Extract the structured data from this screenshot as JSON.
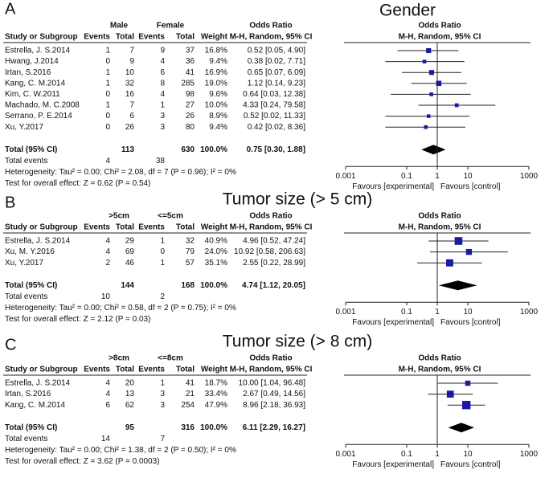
{
  "chart_data": [
    {
      "type": "forest",
      "panel": "A",
      "title": "Gender",
      "group_labels": [
        "Male",
        "Female"
      ],
      "headers": {
        "study": "Study or Subgroup",
        "events": "Events",
        "total": "Total",
        "weight": "Weight",
        "effect": "Odds Ratio",
        "method": "M-H, Random, 95% CI"
      },
      "categories": [
        "Estrella, J. S.2014",
        "Hwang, J.2014",
        "Irtan, S.2016",
        "Kang, C. M.2014",
        "Kim, C. W.2011",
        "Machado, M. C.2008",
        "Serrano, P. E.2014",
        "Xu, Y.2017"
      ],
      "events1": [
        1,
        0,
        1,
        1,
        0,
        1,
        0,
        0
      ],
      "total1": [
        7,
        9,
        10,
        32,
        16,
        7,
        6,
        26
      ],
      "events2": [
        9,
        4,
        6,
        8,
        4,
        1,
        3,
        3
      ],
      "total2": [
        37,
        36,
        41,
        285,
        98,
        27,
        26,
        80
      ],
      "weights": [
        16.8,
        9.4,
        16.9,
        19.0,
        9.6,
        10.0,
        8.9,
        9.4
      ],
      "weight_labels": [
        "16.8%",
        "9.4%",
        "16.9%",
        "19.0%",
        "9.6%",
        "10.0%",
        "8.9%",
        "9.4%"
      ],
      "values": [
        0.52,
        0.38,
        0.65,
        1.12,
        0.64,
        4.33,
        0.52,
        0.42
      ],
      "ci_low": [
        0.05,
        0.02,
        0.07,
        0.14,
        0.03,
        0.24,
        0.02,
        0.02
      ],
      "ci_high": [
        4.9,
        7.71,
        6.09,
        9.23,
        12.38,
        79.58,
        11.33,
        8.36
      ],
      "value_labels": [
        "0.52 [0.05, 4.90]",
        "0.38 [0.02, 7.71]",
        "0.65 [0.07, 6.09]",
        "1.12 [0.14, 9.23]",
        "0.64 [0.03, 12.38]",
        "4.33 [0.24, 79.58]",
        "0.52 [0.02, 11.33]",
        "0.42 [0.02, 8.36]"
      ],
      "total": {
        "label": "Total (95% CI)",
        "total1": 113,
        "total2": 630,
        "weight_label": "100.0%",
        "value": 0.75,
        "ci_low": 0.3,
        "ci_high": 1.88,
        "value_label": "0.75 [0.30, 1.88]"
      },
      "total_events": {
        "label": "Total events",
        "events1": 4,
        "events2": 38
      },
      "heterogeneity": "Heterogeneity: Tau² = 0.00; Chi² = 2.08, df = 7 (P = 0.96); I² = 0%",
      "overall_effect": "Test for overall effect: Z = 0.62 (P = 0.54)",
      "xlim": [
        0.001,
        1000
      ],
      "xticks": [
        0.001,
        0.1,
        1,
        10,
        1000
      ],
      "log_scale": true,
      "null_line": 1,
      "xlabel_left": "Favours [experimental]",
      "xlabel_right": "Favours [control]",
      "color": "#1a1aa6"
    },
    {
      "type": "forest",
      "panel": "B",
      "title": "Tumor size (> 5 cm)",
      "group_labels": [
        ">5cm",
        "<=5cm"
      ],
      "headers": {
        "study": "Study or Subgroup",
        "events": "Events",
        "total": "Total",
        "weight": "Weight",
        "effect": "Odds Ratio",
        "method": "M-H, Random, 95% CI"
      },
      "categories": [
        "Estrella, J. S.2014",
        "Xu, M. Y.2016",
        "Xu, Y.2017"
      ],
      "events1": [
        4,
        4,
        2
      ],
      "total1": [
        29,
        69,
        46
      ],
      "events2": [
        1,
        0,
        1
      ],
      "total2": [
        32,
        79,
        57
      ],
      "weights": [
        40.9,
        24.0,
        35.1
      ],
      "weight_labels": [
        "40.9%",
        "24.0%",
        "35.1%"
      ],
      "values": [
        4.96,
        10.92,
        2.55
      ],
      "ci_low": [
        0.52,
        0.58,
        0.22
      ],
      "ci_high": [
        47.24,
        206.63,
        28.99
      ],
      "value_labels": [
        "4.96 [0.52, 47.24]",
        "10.92 [0.58, 206.63]",
        "2.55 [0.22, 28.99]"
      ],
      "total": {
        "label": "Total (95% CI)",
        "total1": 144,
        "total2": 168,
        "weight_label": "100.0%",
        "value": 4.74,
        "ci_low": 1.12,
        "ci_high": 20.05,
        "value_label": "4.74 [1.12, 20.05]"
      },
      "total_events": {
        "label": "Total events",
        "events1": 10,
        "events2": 2
      },
      "heterogeneity": "Heterogeneity: Tau² = 0.00; Chi² = 0.58, df = 2 (P = 0.75); I² = 0%",
      "overall_effect": "Test for overall effect: Z = 2.12 (P = 0.03)",
      "xlim": [
        0.001,
        1000
      ],
      "xticks": [
        0.001,
        0.1,
        1,
        10,
        1000
      ],
      "log_scale": true,
      "null_line": 1,
      "xlabel_left": "Favours [experimental]",
      "xlabel_right": "Favours [control]",
      "color": "#1a1aa6"
    },
    {
      "type": "forest",
      "panel": "C",
      "title": "Tumor size (> 8 cm)",
      "group_labels": [
        ">8cm",
        "<=8cm"
      ],
      "headers": {
        "study": "Study or Subgroup",
        "events": "Events",
        "total": "Total",
        "weight": "Weight",
        "effect": "Odds Ratio",
        "method": "M-H, Random, 95% CI"
      },
      "categories": [
        "Estrella, J. S.2014",
        "Irtan, S.2016",
        "Kang, C. M.2014"
      ],
      "events1": [
        4,
        4,
        6
      ],
      "total1": [
        20,
        13,
        62
      ],
      "events2": [
        1,
        3,
        3
      ],
      "total2": [
        41,
        21,
        254
      ],
      "weights": [
        18.7,
        33.4,
        47.9
      ],
      "weight_labels": [
        "18.7%",
        "33.4%",
        "47.9%"
      ],
      "values": [
        10.0,
        2.67,
        8.96
      ],
      "ci_low": [
        1.04,
        0.49,
        2.18
      ],
      "ci_high": [
        96.48,
        14.56,
        36.93
      ],
      "value_labels": [
        "10.00 [1.04, 96.48]",
        "2.67 [0.49, 14.56]",
        "8.96 [2.18, 36.93]"
      ],
      "total": {
        "label": "Total (95% CI)",
        "total1": 95,
        "total2": 316,
        "weight_label": "100.0%",
        "value": 6.11,
        "ci_low": 2.29,
        "ci_high": 16.27,
        "value_label": "6.11 [2.29, 16.27]"
      },
      "total_events": {
        "label": "Total events",
        "events1": 14,
        "events2": 7
      },
      "heterogeneity": "Heterogeneity: Tau² = 0.00; Chi² = 1.38, df = 2 (P = 0.50); I² = 0%",
      "overall_effect": "Test for overall effect: Z = 3.62 (P = 0.0003)",
      "xlim": [
        0.001,
        1000
      ],
      "xticks": [
        0.001,
        0.1,
        1,
        10,
        1000
      ],
      "log_scale": true,
      "null_line": 1,
      "xlabel_left": "Favours [experimental]",
      "xlabel_right": "Favours [control]",
      "color": "#1a1aa6"
    }
  ]
}
